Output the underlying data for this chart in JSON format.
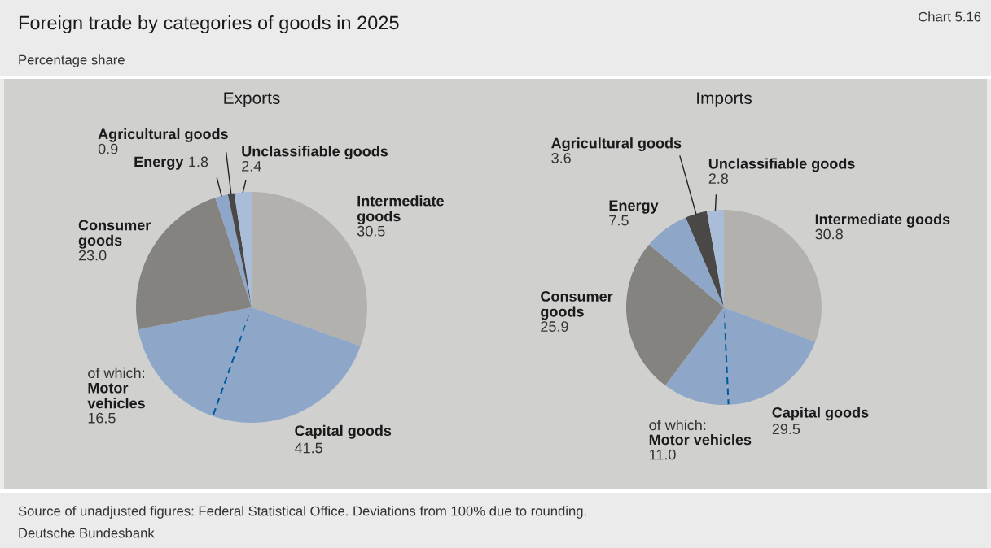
{
  "chart_data": [
    {
      "type": "other",
      "title": "Foreign trade by categories of goods in 2025",
      "subtitle": "Percentage share",
      "annotations": [
        "Chart 5.16",
        "Source of unadjusted figures: Federal Statistical Office. Deviations from 100% due to rounding.",
        "Deutsche Bundesbank"
      ]
    },
    {
      "type": "pie",
      "title": "Exports",
      "categories": [
        "Intermediate goods",
        null,
        "Motor vehicles",
        "Consumer goods",
        "Energy",
        "Agricultural goods",
        "Unclassifiable goods"
      ],
      "values": [
        30.5,
        25.0,
        16.5,
        23.0,
        1.8,
        0.9,
        2.4
      ],
      "value_labels": [
        "30.5",
        null,
        "16.5",
        "23.0",
        "1.8",
        "0.9",
        "2.4"
      ],
      "colors": [
        "#b3b1ae",
        "#8ea7c9",
        "#8ea7c9",
        "#858380",
        "#8ea7c9",
        "#4a4847",
        "#a9bcd8"
      ],
      "annotations": [
        "of which:",
        "Capital goods",
        "41.5"
      ]
    },
    {
      "type": "pie",
      "title": "Imports",
      "categories": [
        "Intermediate goods",
        null,
        "Motor vehicles",
        "Consumer goods",
        "Energy",
        "Agricultural goods",
        "Unclassifiable goods"
      ],
      "values": [
        30.8,
        18.5,
        11.0,
        25.9,
        7.5,
        3.6,
        2.8
      ],
      "value_labels": [
        "30.8",
        null,
        "11.0",
        "25.9",
        "7.5",
        "3.6",
        "2.8"
      ],
      "colors": [
        "#b3b1ae",
        "#8ea7c9",
        "#8ea7c9",
        "#858380",
        "#8ea7c9",
        "#4a4847",
        "#a9bcd8"
      ],
      "annotations": [
        "of which:",
        "Capital goods",
        "29.5"
      ]
    }
  ]
}
